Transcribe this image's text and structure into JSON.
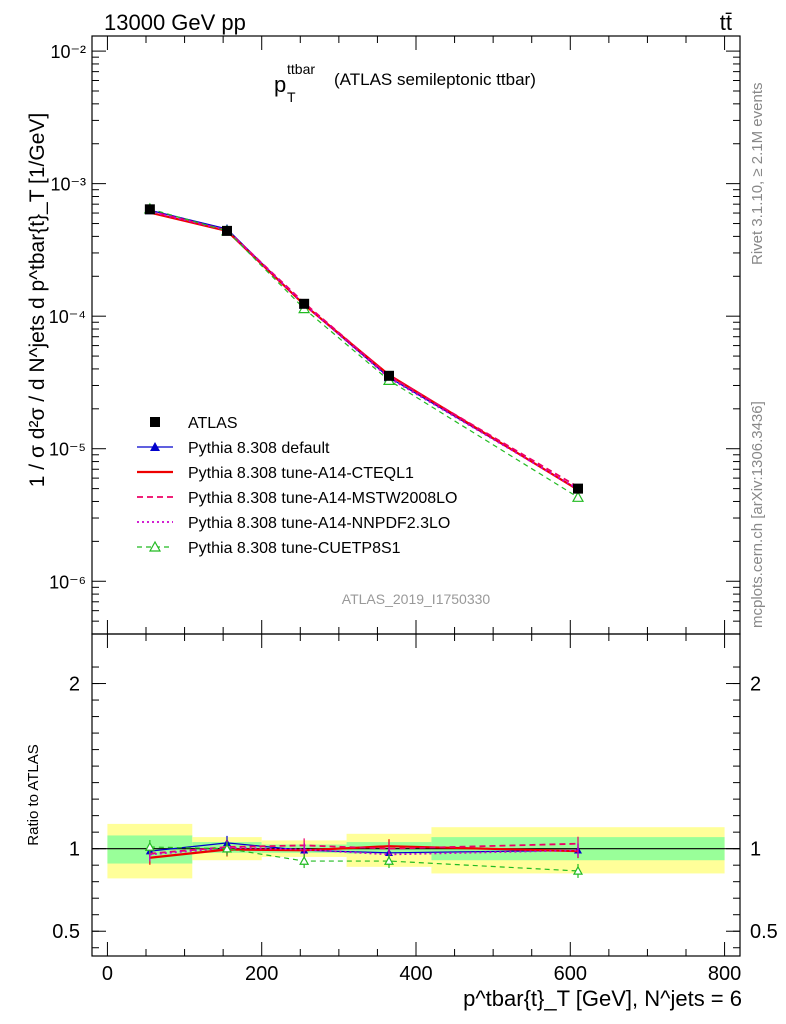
{
  "header": {
    "energy_label": "13000 GeV pp",
    "process_label": "tt̄"
  },
  "side": {
    "rivet_label": "Rivet 3.1.10, ≥ 2.1M events",
    "mcplots_label": "mcplots.cern.ch [arXiv:1306.3436]"
  },
  "chart_data": [
    {
      "type": "line",
      "title_main": "p",
      "title_sup": "ttbar",
      "title_sub": "T",
      "title_rest": "(ATLAS semileptonic ttbar)",
      "ylabel": "1 / σ d²σ / d N^jets d p^tbar{t}_T [1/GeV]",
      "yscale": "log",
      "ylim": [
        4e-07,
        0.013
      ],
      "xlim": [
        -20,
        820
      ],
      "ytick_labels": [
        "10⁻⁶",
        "10⁻⁵",
        "10⁻⁴",
        "10⁻³",
        "10⁻²"
      ],
      "analysis_label": "ATLAS_2019_I1750330",
      "legend_position": "middle-left",
      "x": [
        55,
        155,
        255,
        365,
        610
      ],
      "series": [
        {
          "name": "ATLAS",
          "color": "#000000",
          "marker": "square",
          "values": [
            0.00064,
            0.00044,
            0.000124,
            3.55e-05,
            5e-06
          ]
        },
        {
          "name": "Pythia 8.308 default",
          "color": "#0000cc",
          "marker": "triangle",
          "values": [
            0.00063,
            0.000455,
            0.000122,
            3.45e-05,
            4.95e-06
          ]
        },
        {
          "name": "Pythia 8.308 tune-A14-CTEQL1",
          "color": "#ee0000",
          "marker": "none",
          "values": [
            0.000605,
            0.00044,
            0.000122,
            3.6e-05,
            4.9e-06
          ]
        },
        {
          "name": "Pythia 8.308 tune-A14-MSTW2008LO",
          "color": "#ee0066",
          "marker": "none",
          "values": [
            0.00062,
            0.000445,
            0.000126,
            3.55e-05,
            5.15e-06
          ]
        },
        {
          "name": "Pythia 8.308 tune-A14-NNPDF2.3LO",
          "color": "#cc00cc",
          "marker": "none",
          "values": [
            0.000615,
            0.000445,
            0.000123,
            3.42e-05,
            4.95e-06
          ]
        },
        {
          "name": "Pythia 8.308 tune-CUETP8S1",
          "color": "#22bb22",
          "marker": "open-triangle",
          "values": [
            0.000645,
            0.00044,
            0.000114,
            3.28e-05,
            4.3e-06
          ]
        }
      ]
    },
    {
      "type": "line",
      "ylabel": "Ratio to ATLAS",
      "xlabel": "p^tbar{t}_T [GeV], N^jets = 6",
      "ylim": [
        0.35,
        2.3
      ],
      "xlim": [
        -20,
        820
      ],
      "ytick_labels": [
        "0.5",
        "1",
        "2"
      ],
      "xtick_labels": [
        "0",
        "200",
        "400",
        "600",
        "800"
      ],
      "bins": [
        {
          "lo": 0,
          "hi": 110,
          "inner": [
            0.91,
            1.08
          ],
          "outer": [
            0.82,
            1.15
          ]
        },
        {
          "lo": 110,
          "hi": 200,
          "inner": [
            0.975,
            1.04
          ],
          "outer": [
            0.93,
            1.07
          ]
        },
        {
          "lo": 200,
          "hi": 310,
          "inner": [
            0.975,
            1.025
          ],
          "outer": [
            0.95,
            1.05
          ]
        },
        {
          "lo": 310,
          "hi": 420,
          "inner": [
            0.97,
            1.04
          ],
          "outer": [
            0.89,
            1.09
          ]
        },
        {
          "lo": 420,
          "hi": 800,
          "inner": [
            0.93,
            1.07
          ],
          "outer": [
            0.85,
            1.13
          ]
        }
      ],
      "x": [
        55,
        155,
        255,
        365,
        610
      ],
      "series": [
        {
          "name": "Pythia 8.308 default",
          "color": "#0000cc",
          "values": [
            0.985,
            1.035,
            0.99,
            0.975,
            0.99
          ]
        },
        {
          "name": "Pythia 8.308 tune-A14-CTEQL1",
          "color": "#ee0000",
          "values": [
            0.945,
            0.995,
            0.99,
            1.015,
            0.985
          ]
        },
        {
          "name": "Pythia 8.308 tune-A14-MSTW2008LO",
          "color": "#ee0066",
          "values": [
            0.97,
            1.01,
            1.02,
            1.0,
            1.03
          ]
        },
        {
          "name": "Pythia 8.308 tune-A14-NNPDF2.3LO",
          "color": "#cc00cc",
          "values": [
            0.965,
            1.005,
            0.995,
            0.965,
            0.99
          ]
        },
        {
          "name": "Pythia 8.308 tune-CUETP8S1",
          "color": "#22bb22",
          "values": [
            1.01,
            1.0,
            0.925,
            0.925,
            0.865
          ]
        }
      ],
      "band_colors": {
        "inner": "#99ff99",
        "outer": "#ffff99"
      }
    }
  ]
}
